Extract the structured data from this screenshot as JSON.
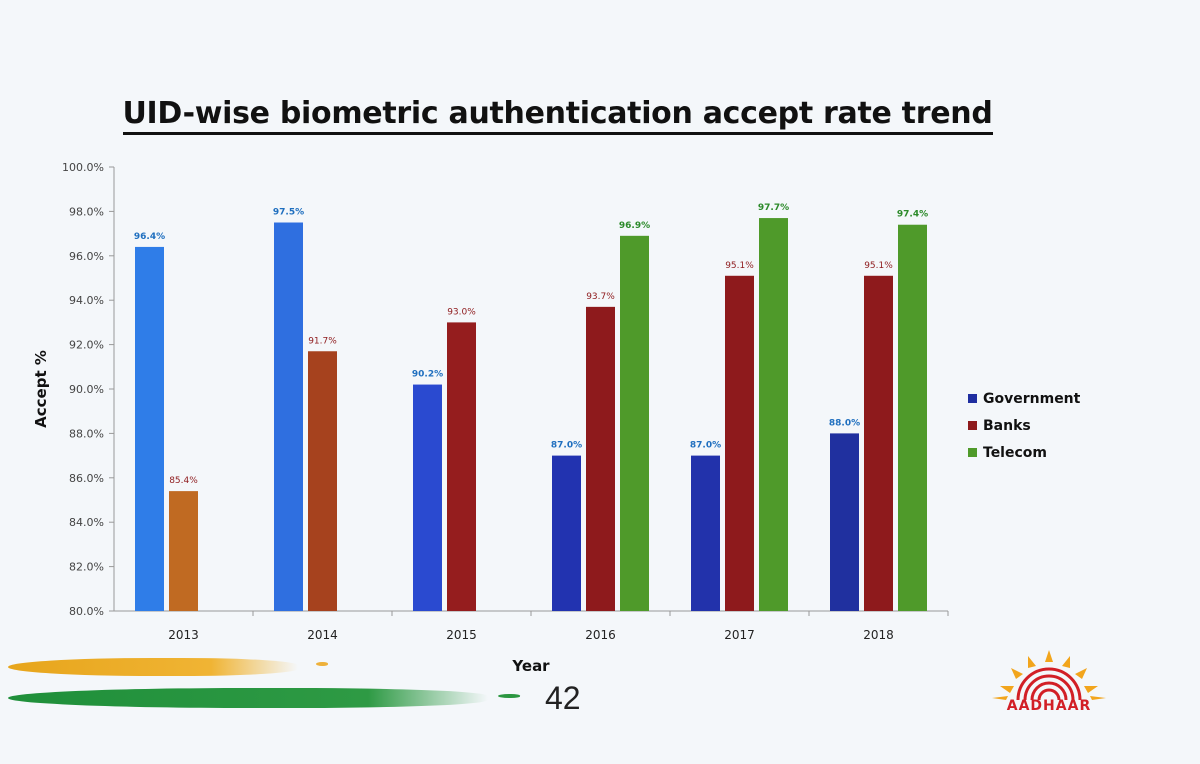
{
  "title": "UID-wise biometric authentication accept rate trend",
  "page_number": "42",
  "logo": {
    "text": "AADHAAR",
    "icon": "aadhaar-sun-fingerprint-icon"
  },
  "colors": {
    "government": "#2f62d9",
    "banks": "#8e1a1c",
    "telecom": "#4f9a2a",
    "axis": "#999999",
    "label": "#444444"
  },
  "chart_data": {
    "type": "bar",
    "title": "UID-wise biometric authentication accept rate trend",
    "xlabel": "Year",
    "ylabel": "Accept %",
    "ylim": [
      80,
      100
    ],
    "yticks": [
      "80.0%",
      "82.0%",
      "84.0%",
      "86.0%",
      "88.0%",
      "90.0%",
      "92.0%",
      "94.0%",
      "96.0%",
      "98.0%",
      "100.0%"
    ],
    "categories": [
      "2013",
      "2014",
      "2015",
      "2016",
      "2017",
      "2018"
    ],
    "series": [
      {
        "name": "Government",
        "color": "#2f62d9",
        "values": [
          96.4,
          97.5,
          90.2,
          87.0,
          87.0,
          88.0
        ],
        "labels": [
          "96.4%",
          "97.5%",
          "90.2%",
          "87.0%",
          "87.0%",
          "88.0%"
        ]
      },
      {
        "name": "Banks",
        "color": "#8e1a1c",
        "values": [
          85.4,
          91.7,
          93.0,
          93.7,
          95.1,
          95.1
        ],
        "labels": [
          "85.4%",
          "91.7%",
          "93.0%",
          "93.7%",
          "95.1%",
          "95.1%"
        ]
      },
      {
        "name": "Telecom",
        "color": "#4f9a2a",
        "values": [
          null,
          null,
          null,
          96.9,
          97.7,
          97.4
        ],
        "labels": [
          "",
          "",
          "",
          "96.9%",
          "97.7%",
          "97.4%"
        ]
      }
    ],
    "legend_position": "right",
    "grid": false
  }
}
